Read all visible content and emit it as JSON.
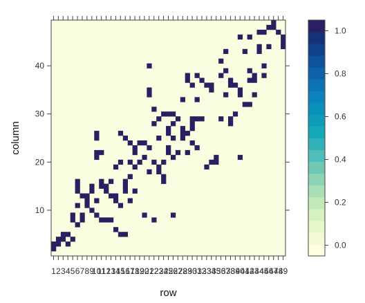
{
  "chart_data": {
    "type": "heatmap",
    "xlabel": "row",
    "ylabel": "column",
    "x_ticks": [
      "1",
      "2",
      "3",
      "4",
      "5",
      "6",
      "7",
      "8",
      "9",
      "10",
      "11",
      "12",
      "13",
      "14",
      "15",
      "16",
      "17",
      "18",
      "19",
      "20",
      "21",
      "22",
      "23",
      "24",
      "25",
      "26",
      "27",
      "28",
      "29",
      "30",
      "31",
      "32",
      "33",
      "34",
      "35",
      "36",
      "37",
      "38",
      "39",
      "40",
      "41",
      "42",
      "43",
      "44",
      "45",
      "46",
      "47",
      "48",
      "49"
    ],
    "y_ticks": [
      10,
      20,
      30,
      40
    ],
    "xlim": [
      0.5,
      49.5
    ],
    "ylim": [
      0.5,
      49.5
    ],
    "colorbar": {
      "ticks": [
        "0.0",
        "0.2",
        "0.4",
        "0.6",
        "0.8",
        "1.0"
      ],
      "tick_values": [
        0,
        0.2,
        0.4,
        0.6,
        0.8,
        1.0
      ],
      "range": [
        -0.05,
        1.05
      ],
      "bins": 20,
      "colors": [
        "#ffffe0",
        "#f4fad6",
        "#e8f6cc",
        "#d6f0c0",
        "#c2e8b8",
        "#a8deb4",
        "#8cd4b4",
        "#70c8b4",
        "#4fbdb8",
        "#2fb2b8",
        "#14a8b8",
        "#0c9cba",
        "#0a90bc",
        "#0b82bb",
        "#0c73b4",
        "#0d63aa",
        "#0e529c",
        "#10428c",
        "#16317a",
        "#2a1f60"
      ]
    },
    "cell_color_one": "#2a1f60",
    "cell_color_zero": "#f8fee0",
    "edges": [
      [
        1,
        2
      ],
      [
        1,
        3
      ],
      [
        2,
        3
      ],
      [
        2,
        4
      ],
      [
        3,
        4
      ],
      [
        3,
        5
      ],
      [
        4,
        5
      ],
      [
        4,
        3
      ],
      [
        5,
        8
      ],
      [
        5,
        9
      ],
      [
        5,
        4
      ],
      [
        6,
        7
      ],
      [
        6,
        11
      ],
      [
        6,
        14
      ],
      [
        6,
        15
      ],
      [
        6,
        16
      ],
      [
        7,
        8
      ],
      [
        7,
        9
      ],
      [
        7,
        13
      ],
      [
        8,
        12
      ],
      [
        8,
        13
      ],
      [
        8,
        11
      ],
      [
        9,
        10
      ],
      [
        9,
        14
      ],
      [
        9,
        15
      ],
      [
        10,
        9
      ],
      [
        10,
        12
      ],
      [
        10,
        21
      ],
      [
        10,
        22
      ],
      [
        10,
        25
      ],
      [
        10,
        26
      ],
      [
        11,
        8
      ],
      [
        11,
        15
      ],
      [
        11,
        16
      ],
      [
        11,
        22
      ],
      [
        12,
        8
      ],
      [
        12,
        14
      ],
      [
        12,
        15
      ],
      [
        13,
        8
      ],
      [
        13,
        13
      ],
      [
        13,
        16
      ],
      [
        14,
        6
      ],
      [
        14,
        12
      ],
      [
        14,
        13
      ],
      [
        14,
        19
      ],
      [
        15,
        5
      ],
      [
        15,
        11
      ],
      [
        15,
        20
      ],
      [
        15,
        26
      ],
      [
        16,
        5
      ],
      [
        16,
        14
      ],
      [
        16,
        15
      ],
      [
        16,
        16
      ],
      [
        16,
        25
      ],
      [
        17,
        12
      ],
      [
        17,
        17
      ],
      [
        17,
        24
      ],
      [
        17,
        20
      ],
      [
        18,
        14
      ],
      [
        18,
        22
      ],
      [
        18,
        23
      ],
      [
        18,
        19
      ],
      [
        19,
        20
      ],
      [
        19,
        24
      ],
      [
        20,
        21
      ],
      [
        20,
        9
      ],
      [
        20,
        24
      ],
      [
        21,
        18
      ],
      [
        21,
        23
      ],
      [
        21,
        40
      ],
      [
        21,
        34
      ],
      [
        21,
        35
      ],
      [
        22,
        8
      ],
      [
        22,
        20
      ],
      [
        22,
        28
      ],
      [
        22,
        31
      ],
      [
        23,
        18
      ],
      [
        23,
        19
      ],
      [
        23,
        25
      ],
      [
        23,
        29
      ],
      [
        24,
        16
      ],
      [
        24,
        17
      ],
      [
        24,
        20
      ],
      [
        24,
        30
      ],
      [
        25,
        22
      ],
      [
        25,
        23
      ],
      [
        25,
        26
      ],
      [
        25,
        27
      ],
      [
        25,
        30
      ],
      [
        26,
        9
      ],
      [
        26,
        21
      ],
      [
        26,
        25
      ],
      [
        26,
        28
      ],
      [
        26,
        30
      ],
      [
        27,
        22
      ],
      [
        27,
        29
      ],
      [
        28,
        25
      ],
      [
        28,
        26
      ],
      [
        28,
        27
      ],
      [
        28,
        33
      ],
      [
        29,
        22
      ],
      [
        29,
        26
      ],
      [
        29,
        37
      ],
      [
        29,
        38
      ],
      [
        30,
        24
      ],
      [
        30,
        27
      ],
      [
        30,
        28
      ],
      [
        30,
        29
      ],
      [
        30,
        36
      ],
      [
        31,
        23
      ],
      [
        31,
        33
      ],
      [
        31,
        38
      ],
      [
        31,
        29
      ],
      [
        32,
        29
      ],
      [
        32,
        37
      ],
      [
        33,
        19
      ],
      [
        33,
        36
      ],
      [
        34,
        20
      ],
      [
        34,
        35
      ],
      [
        34,
        36
      ],
      [
        35,
        21
      ],
      [
        35,
        20
      ],
      [
        36,
        29
      ],
      [
        36,
        38
      ],
      [
        36,
        41
      ],
      [
        37,
        34
      ],
      [
        37,
        39
      ],
      [
        37,
        43
      ],
      [
        38,
        28
      ],
      [
        38,
        29
      ],
      [
        38,
        36
      ],
      [
        38,
        37
      ],
      [
        39,
        30
      ],
      [
        39,
        36
      ],
      [
        40,
        21
      ],
      [
        40,
        34
      ],
      [
        40,
        35
      ],
      [
        40,
        46
      ],
      [
        41,
        32
      ],
      [
        41,
        43
      ],
      [
        42,
        32
      ],
      [
        42,
        37
      ],
      [
        42,
        39
      ],
      [
        42,
        46
      ],
      [
        43,
        34
      ],
      [
        43,
        37
      ],
      [
        43,
        38
      ],
      [
        44,
        43
      ],
      [
        44,
        44
      ],
      [
        44,
        47
      ],
      [
        45,
        38
      ],
      [
        45,
        40
      ],
      [
        45,
        47
      ],
      [
        46,
        44
      ],
      [
        46,
        48
      ],
      [
        47,
        48
      ],
      [
        47,
        49
      ],
      [
        48,
        47
      ],
      [
        49,
        44
      ],
      [
        49,
        45
      ],
      [
        49,
        46
      ]
    ]
  }
}
